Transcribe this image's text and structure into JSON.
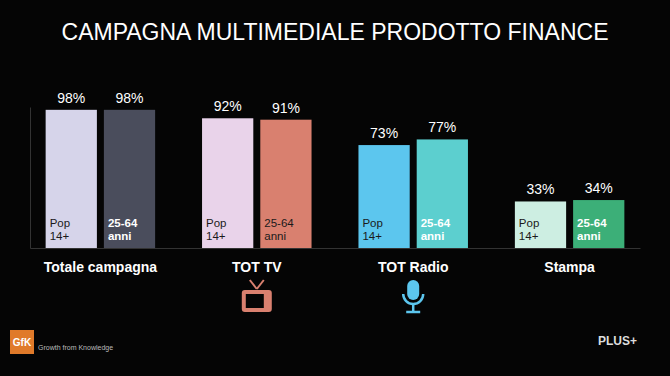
{
  "chart_data": {
    "type": "bar",
    "title": "CAMPAGNA MULTIMEDIALE PRODOTTO FINANCE",
    "categories": [
      "Totale campagna",
      "TOT TV",
      "TOT Radio",
      "Stampa"
    ],
    "series": [
      {
        "name": "Pop 14+",
        "values": [
          98,
          92,
          73,
          33
        ],
        "value_labels": [
          "98%",
          "92%",
          "73%",
          "33%"
        ],
        "colors": [
          "#d6d4ea",
          "#e9d3ea",
          "#5cc6ee",
          "#cdeee2"
        ]
      },
      {
        "name": "25-64 anni",
        "values": [
          98,
          91,
          77,
          34
        ],
        "value_labels": [
          "98%",
          "91%",
          "77%",
          "34%"
        ],
        "colors": [
          "#4a4d5c",
          "#d9806f",
          "#5ccfcf",
          "#3caf78"
        ]
      }
    ],
    "ylim": [
      0,
      100
    ],
    "data_labels": true,
    "tick_labels": "x",
    "annotations": [
      "GfK",
      "Growth from Knowledge",
      "PLUS+"
    ]
  }
}
